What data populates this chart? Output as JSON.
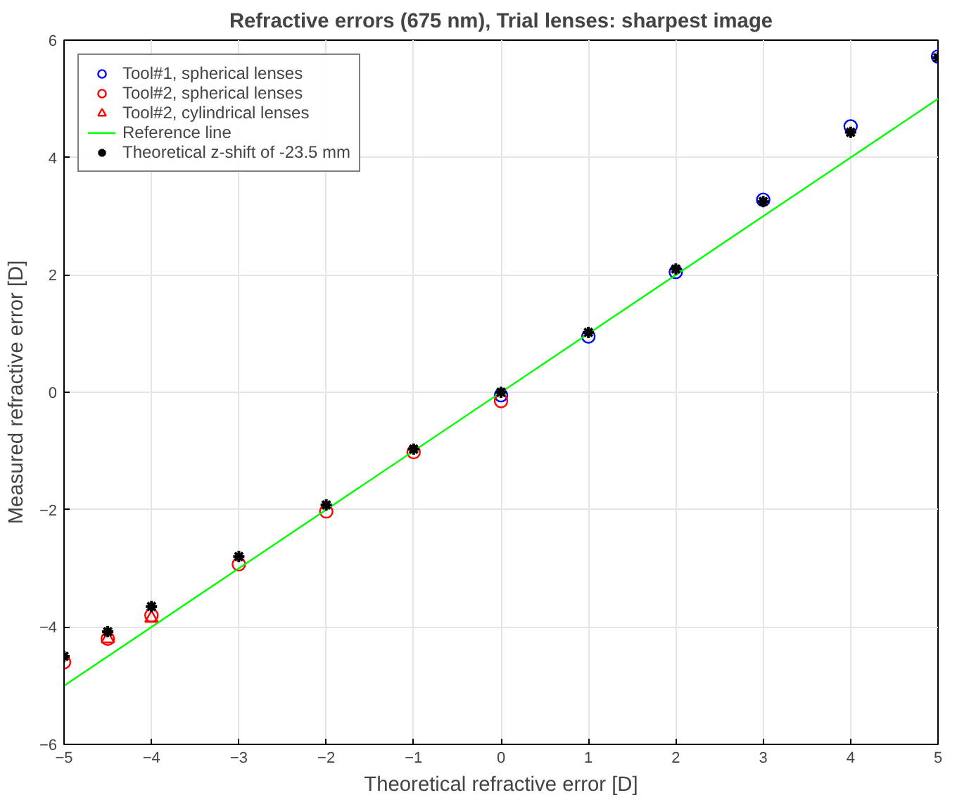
{
  "chart_data": {
    "type": "scatter",
    "title": "Refractive errors (675 nm), Trial lenses: sharpest image",
    "xlabel": "Theoretical refractive error [D]",
    "ylabel": "Measured refractive error [D]",
    "series": [
      {
        "name": "Tool#1, spherical lenses",
        "color": "#0000ff",
        "marker": "circle",
        "x": [
          0,
          1,
          2,
          3,
          4,
          5
        ],
        "values": [
          -0.05,
          0.95,
          2.05,
          3.28,
          4.53,
          5.72
        ]
      },
      {
        "name": "Tool#2, spherical lenses",
        "color": "#ff0000",
        "marker": "circle",
        "x": [
          -5,
          -4.5,
          -4,
          -3,
          -2,
          -1,
          0
        ],
        "values": [
          -4.6,
          -4.2,
          -3.8,
          -2.93,
          -2.03,
          -1.02,
          -0.15
        ]
      },
      {
        "name": "Tool#2, cylindrical lenses",
        "color": "#ff0000",
        "marker": "triangle",
        "x": [
          -4.5,
          -4
        ],
        "values": [
          -4.2,
          -3.85
        ]
      },
      {
        "name": "Reference line",
        "type": "line",
        "color": "#00ff00",
        "marker": "none",
        "x": [
          -5,
          5
        ],
        "values": [
          -5,
          5
        ]
      },
      {
        "name": "Theoretical z-shift of -23.5 mm",
        "color": "#000000",
        "marker": "cross",
        "x": [
          -5,
          -4.5,
          -4,
          -3,
          -2,
          -1,
          0,
          1,
          2,
          3,
          4,
          5
        ],
        "values": [
          -4.5,
          -4.08,
          -3.65,
          -2.8,
          -1.92,
          -0.97,
          0,
          1.02,
          2.1,
          3.25,
          4.43,
          5.7
        ]
      }
    ],
    "xlim": [
      -5,
      5
    ],
    "xticks": [
      -5,
      -4,
      -3,
      -2,
      -1,
      0,
      1,
      2,
      3,
      4,
      5
    ],
    "ylim": [
      -6,
      6
    ],
    "yticks": [
      -6,
      -4,
      -2,
      0,
      2,
      4,
      6
    ],
    "grid": true,
    "legend": "top left"
  }
}
